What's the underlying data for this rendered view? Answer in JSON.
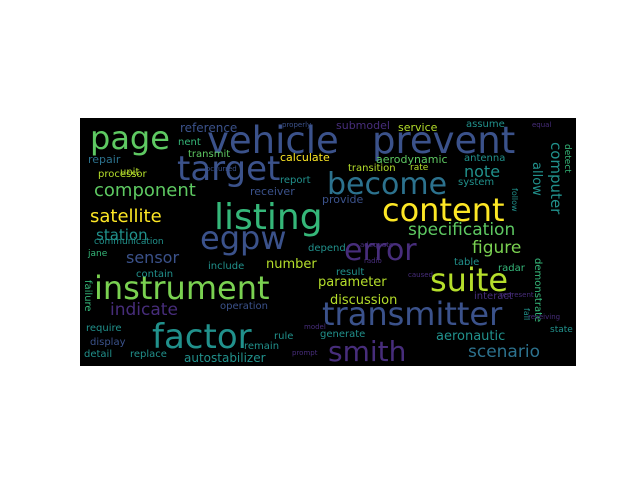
{
  "wordcloud": {
    "background": "#000000",
    "words": [
      {
        "text": "vehicle",
        "color": "#3b528b"
      },
      {
        "text": "prevent",
        "color": "#3b528b"
      },
      {
        "text": "page",
        "color": "#5ec962"
      },
      {
        "text": "target",
        "color": "#3b528b"
      },
      {
        "text": "become",
        "color": "#2c728e"
      },
      {
        "text": "content",
        "color": "#fde725"
      },
      {
        "text": "listing",
        "color": "#35b779"
      },
      {
        "text": "egpw",
        "color": "#3b528b"
      },
      {
        "text": "error",
        "color": "#472d7b"
      },
      {
        "text": "instrument",
        "color": "#7ad151"
      },
      {
        "text": "suite",
        "color": "#b5de2b"
      },
      {
        "text": "transmitter",
        "color": "#3b528b"
      },
      {
        "text": "factor",
        "color": "#21918c"
      },
      {
        "text": "smith",
        "color": "#472d7b"
      },
      {
        "text": "satellite",
        "color": "#fde725"
      },
      {
        "text": "component",
        "color": "#5ec962"
      },
      {
        "text": "specification",
        "color": "#5ec962"
      },
      {
        "text": "figure",
        "color": "#7ad151"
      },
      {
        "text": "scenario",
        "color": "#2c728e"
      },
      {
        "text": "indicate",
        "color": "#472d7b"
      },
      {
        "text": "sensor",
        "color": "#3b528b"
      },
      {
        "text": "station",
        "color": "#21918c"
      },
      {
        "text": "parameter",
        "color": "#b5de2b"
      },
      {
        "text": "discussion",
        "color": "#b5de2b"
      },
      {
        "text": "number",
        "color": "#b5de2b"
      },
      {
        "text": "note",
        "color": "#21918c"
      },
      {
        "text": "computer",
        "color": "#21918c"
      },
      {
        "text": "allow",
        "color": "#21918c"
      },
      {
        "text": "aeronautic",
        "color": "#21918c"
      },
      {
        "text": "autostabilizer",
        "color": "#21918c"
      },
      {
        "text": "reference",
        "color": "#3b528b"
      },
      {
        "text": "submodel",
        "color": "#472d7b"
      },
      {
        "text": "service",
        "color": "#b5de2b"
      },
      {
        "text": "assume",
        "color": "#21918c"
      },
      {
        "text": "calculate",
        "color": "#fde725"
      },
      {
        "text": "aerodynamic",
        "color": "#5ec962"
      },
      {
        "text": "antenna",
        "color": "#21918c"
      },
      {
        "text": "transition",
        "color": "#b5de2b"
      },
      {
        "text": "rate",
        "color": "#b5de2b"
      },
      {
        "text": "report",
        "color": "#21918c"
      },
      {
        "text": "provide",
        "color": "#3b528b"
      },
      {
        "text": "system",
        "color": "#21918c"
      },
      {
        "text": "receiver",
        "color": "#3b528b"
      },
      {
        "text": "communication",
        "color": "#21918c"
      },
      {
        "text": "unit",
        "color": "#b5de2b"
      },
      {
        "text": "processor",
        "color": "#b5de2b"
      },
      {
        "text": "repair",
        "color": "#2c728e"
      },
      {
        "text": "transmit",
        "color": "#5ec962"
      },
      {
        "text": "nent",
        "color": "#35b779"
      },
      {
        "text": "jane",
        "color": "#35b779"
      },
      {
        "text": "include",
        "color": "#21918c"
      },
      {
        "text": "contain",
        "color": "#21918c"
      },
      {
        "text": "depend",
        "color": "#21918c"
      },
      {
        "text": "result",
        "color": "#21918c"
      },
      {
        "text": "table",
        "color": "#21918c"
      },
      {
        "text": "radar",
        "color": "#35b779"
      },
      {
        "text": "interact",
        "color": "#472d7b"
      },
      {
        "text": "demonstrate",
        "color": "#35b779"
      },
      {
        "text": "require",
        "color": "#21918c"
      },
      {
        "text": "operation",
        "color": "#3b528b"
      },
      {
        "text": "generate",
        "color": "#21918c"
      },
      {
        "text": "display",
        "color": "#3b528b"
      },
      {
        "text": "rule",
        "color": "#21918c"
      },
      {
        "text": "detail",
        "color": "#21918c"
      },
      {
        "text": "replace",
        "color": "#21918c"
      },
      {
        "text": "remain",
        "color": "#21918c"
      },
      {
        "text": "state",
        "color": "#21918c"
      },
      {
        "text": "failure",
        "color": "#35b779"
      },
      {
        "text": "detect",
        "color": "#35b779"
      },
      {
        "text": "occurred",
        "color": "#3b528b"
      },
      {
        "text": "caused",
        "color": "#472d7b"
      },
      {
        "text": "represent",
        "color": "#472d7b"
      },
      {
        "text": "receiving",
        "color": "#472d7b"
      },
      {
        "text": "properly",
        "color": "#3b528b"
      },
      {
        "text": "model",
        "color": "#472d7b"
      },
      {
        "text": "radio",
        "color": "#472d7b"
      },
      {
        "text": "prompt",
        "color": "#472d7b"
      },
      {
        "text": "adequate",
        "color": "#472d7b"
      },
      {
        "text": "fail",
        "color": "#21918c"
      },
      {
        "text": "follow",
        "color": "#21918c"
      },
      {
        "text": "equal",
        "color": "#472d7b"
      }
    ]
  }
}
